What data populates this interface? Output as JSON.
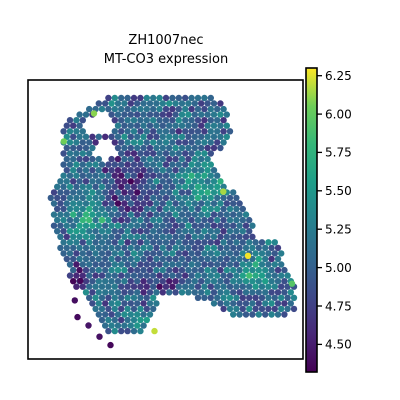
{
  "chart_data": {
    "type": "scatter",
    "title": "ZH1007nec",
    "subtitle": "MT-CO3 expression",
    "xlabel": "",
    "ylabel": "",
    "colorbar": {
      "colormap": "viridis",
      "range": [
        4.32,
        6.3
      ],
      "ticks": [
        "4.50",
        "4.75",
        "5.00",
        "5.25",
        "5.50",
        "5.75",
        "6.00",
        "6.25"
      ]
    },
    "grid": false,
    "legend": "none",
    "tissue": {
      "region": [
        [
          0.29,
          0.06
        ],
        [
          0.45,
          0.03
        ],
        [
          0.62,
          0.03
        ],
        [
          0.72,
          0.09
        ],
        [
          0.74,
          0.21
        ],
        [
          0.66,
          0.29
        ],
        [
          0.7,
          0.35
        ],
        [
          0.78,
          0.44
        ],
        [
          0.82,
          0.52
        ],
        [
          0.84,
          0.58
        ],
        [
          0.9,
          0.58
        ],
        [
          0.94,
          0.66
        ],
        [
          0.98,
          0.74
        ],
        [
          0.97,
          0.82
        ],
        [
          0.9,
          0.86
        ],
        [
          0.82,
          0.86
        ],
        [
          0.74,
          0.84
        ],
        [
          0.66,
          0.8
        ],
        [
          0.56,
          0.77
        ],
        [
          0.48,
          0.77
        ],
        [
          0.46,
          0.84
        ],
        [
          0.42,
          0.9
        ],
        [
          0.35,
          0.92
        ],
        [
          0.27,
          0.9
        ],
        [
          0.22,
          0.8
        ],
        [
          0.16,
          0.72
        ],
        [
          0.12,
          0.62
        ],
        [
          0.09,
          0.52
        ],
        [
          0.08,
          0.4
        ],
        [
          0.13,
          0.34
        ],
        [
          0.12,
          0.24
        ],
        [
          0.13,
          0.16
        ],
        [
          0.2,
          0.11
        ]
      ],
      "holes": [
        [
          0.26,
          0.16,
          0.05,
          0.04
        ],
        [
          0.28,
          0.25,
          0.04,
          0.035
        ]
      ],
      "low_expression_zones": [
        [
          0.27,
          0.22,
          0.05,
          0.03
        ],
        [
          0.36,
          0.38,
          0.1,
          0.14
        ],
        [
          0.46,
          0.73,
          0.14,
          0.05
        ],
        [
          0.18,
          0.7,
          0.07,
          0.06
        ]
      ],
      "high_expression_zones": [
        [
          0.64,
          0.38,
          0.09,
          0.12
        ],
        [
          0.42,
          0.88,
          0.05,
          0.03
        ],
        [
          0.22,
          0.5,
          0.1,
          0.1
        ],
        [
          0.82,
          0.7,
          0.08,
          0.07
        ]
      ],
      "outliers": [
        {
          "x": 0.8,
          "y": 0.63,
          "value": 6.28
        },
        {
          "x": 0.96,
          "y": 0.73,
          "value": 5.95
        },
        {
          "x": 0.71,
          "y": 0.4,
          "value": 6.15
        },
        {
          "x": 0.24,
          "y": 0.12,
          "value": 6.1
        },
        {
          "x": 0.46,
          "y": 0.9,
          "value": 6.2
        },
        {
          "x": 0.13,
          "y": 0.22,
          "value": 6.05
        }
      ],
      "tail_points": [
        {
          "x": 0.19,
          "y": 0.72,
          "value": 4.35
        },
        {
          "x": 0.17,
          "y": 0.79,
          "value": 4.4
        },
        {
          "x": 0.18,
          "y": 0.85,
          "value": 4.38
        },
        {
          "x": 0.22,
          "y": 0.88,
          "value": 4.45
        },
        {
          "x": 0.26,
          "y": 0.92,
          "value": 4.42
        },
        {
          "x": 0.3,
          "y": 0.95,
          "value": 4.36
        }
      ]
    }
  }
}
